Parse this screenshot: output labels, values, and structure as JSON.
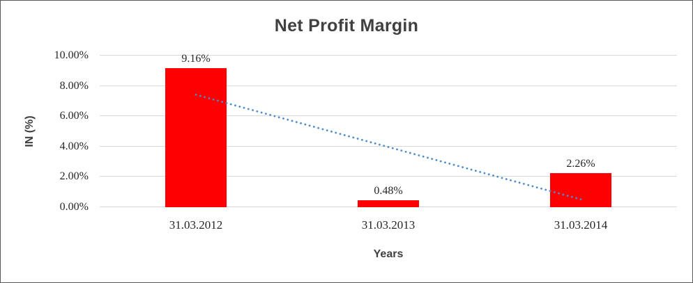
{
  "chart_data": {
    "type": "bar",
    "title": "Net Profit Margin",
    "xlabel": "Years",
    "ylabel": "IN (%)",
    "categories": [
      "31.03.2012",
      "31.03.2013",
      "31.03.2014"
    ],
    "values": [
      9.16,
      0.48,
      2.26
    ],
    "data_labels": [
      "9.16%",
      "0.48%",
      "2.26%"
    ],
    "ylim": [
      0,
      10
    ],
    "ytick_labels": [
      "0.00%",
      "2.00%",
      "4.00%",
      "6.00%",
      "8.00%",
      "10.00%"
    ],
    "grid": true,
    "legend": "none",
    "bar_color": "#ff0000",
    "trendline": {
      "type": "linear",
      "style": "dotted",
      "color": "#4f8bc9",
      "start_value": 7.42,
      "end_value": 0.52
    },
    "colors": {
      "title_text": "#404040",
      "axis_title_text": "#404040",
      "tick_text": "#262626",
      "gridline": "#d9d9d9",
      "border": "#595959"
    }
  }
}
